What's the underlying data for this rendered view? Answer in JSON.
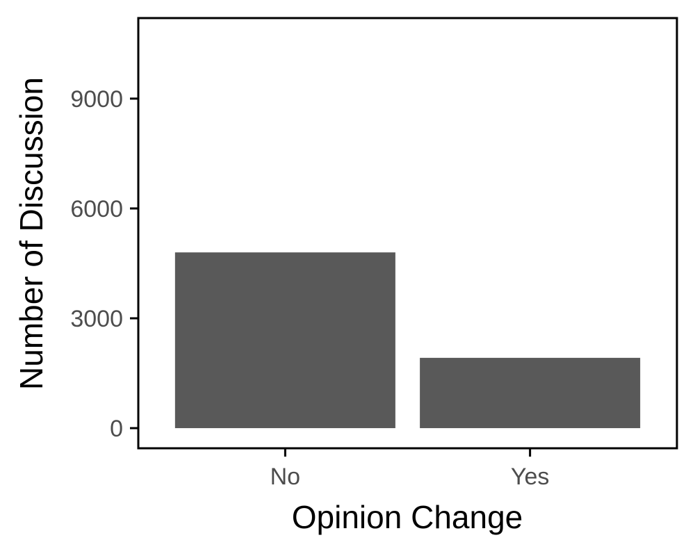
{
  "chart_data": {
    "type": "bar",
    "title": "",
    "xlabel": "Opinion Change",
    "ylabel": "Number of Discussion",
    "categories": [
      "No",
      "Yes"
    ],
    "values": [
      4800,
      1920
    ],
    "ylim": [
      -550,
      11200
    ],
    "yticks": [
      0,
      3000,
      6000,
      9000
    ],
    "ytick_labels": [
      "0",
      "3000",
      "6000",
      "9000"
    ],
    "grid": false,
    "legend": "none",
    "colors": {
      "bar": "#595959",
      "axis": "#000000",
      "tick_text": "#4d4d4d",
      "background": "#ffffff"
    }
  }
}
